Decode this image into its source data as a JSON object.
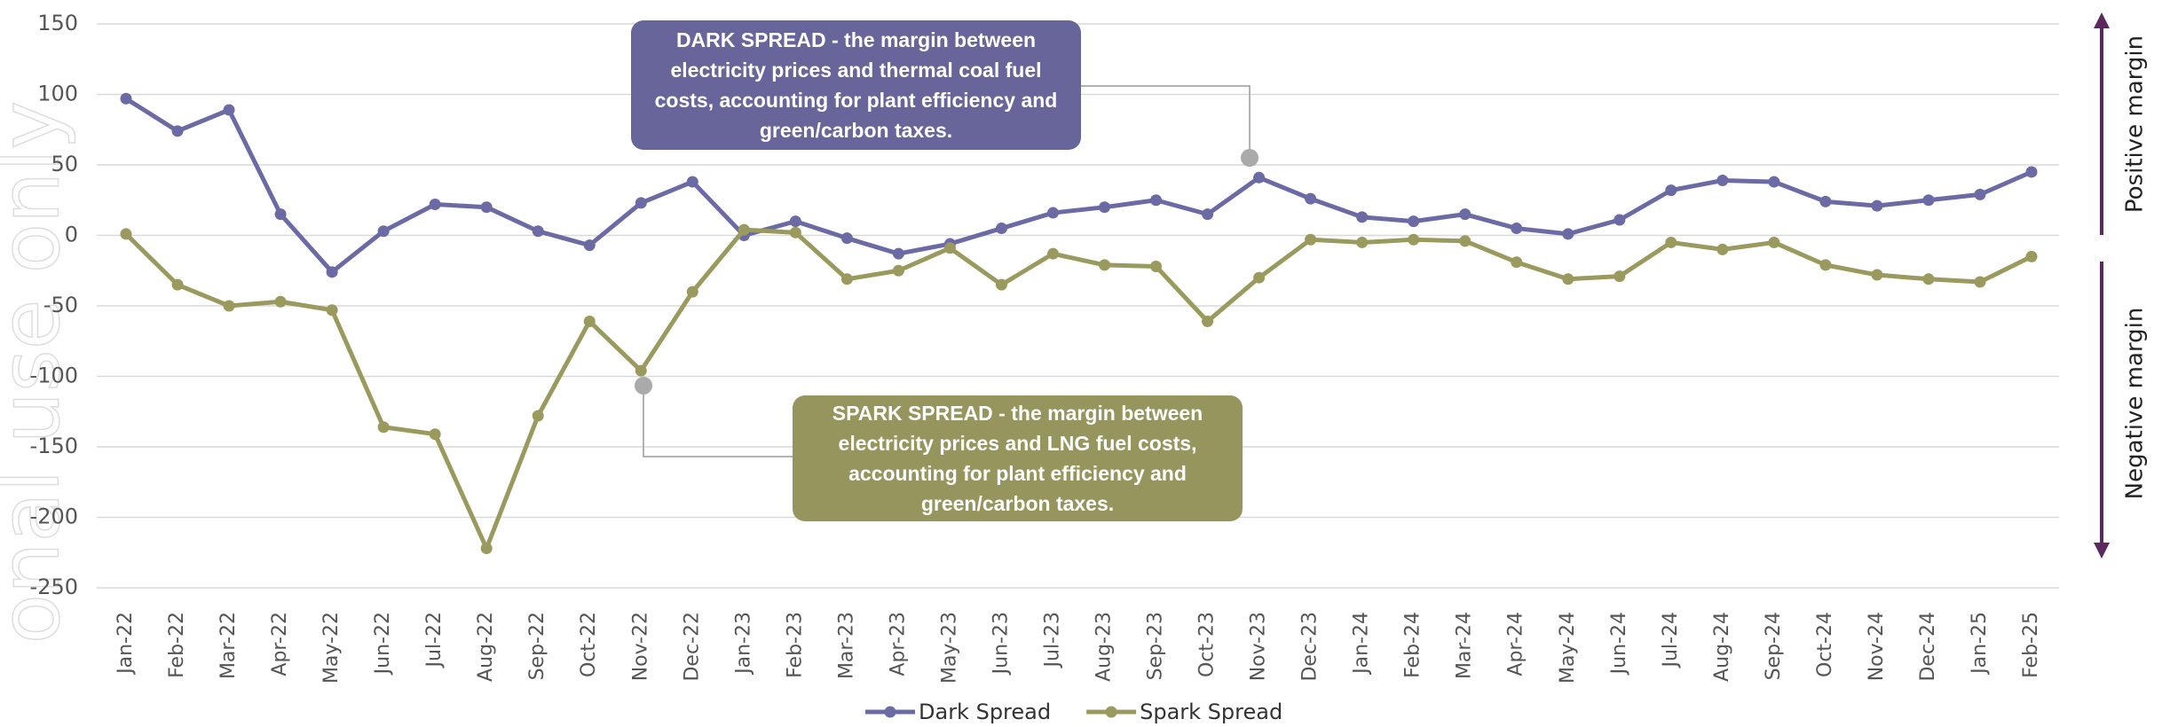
{
  "chart_data": {
    "type": "line",
    "categories": [
      "Jan-22",
      "Feb-22",
      "Mar-22",
      "Apr-22",
      "May-22",
      "Jun-22",
      "Jul-22",
      "Aug-22",
      "Sep-22",
      "Oct-22",
      "Nov-22",
      "Dec-22",
      "Jan-23",
      "Feb-23",
      "Mar-23",
      "Apr-23",
      "May-23",
      "Jun-23",
      "Jul-23",
      "Aug-23",
      "Sep-23",
      "Oct-23",
      "Nov-23",
      "Dec-23",
      "Jan-24",
      "Feb-24",
      "Mar-24",
      "Apr-24",
      "May-24",
      "Jun-24",
      "Jul-24",
      "Aug-24",
      "Sep-24",
      "Oct-24",
      "Nov-24",
      "Dec-24",
      "Jan-25",
      "Feb-25"
    ],
    "series": [
      {
        "name": "Dark Spread",
        "color": "#6b6aa4",
        "values": [
          97,
          74,
          89,
          15,
          -26,
          3,
          22,
          20,
          3,
          -7,
          23,
          38,
          0,
          10,
          -2,
          -13,
          -6,
          5,
          16,
          20,
          25,
          15,
          41,
          26,
          13,
          10,
          15,
          5,
          1,
          11,
          32,
          39,
          38,
          24,
          21,
          25,
          29,
          45
        ]
      },
      {
        "name": "Spark Spread",
        "color": "#9a9a5e",
        "values": [
          1,
          -35,
          -50,
          -47,
          -53,
          -136,
          -141,
          -222,
          -128,
          -61,
          -96,
          -40,
          4,
          2,
          -31,
          -25,
          -9,
          -35,
          -13,
          -21,
          -22,
          -61,
          -30,
          -3,
          -5,
          -3,
          -4,
          -19,
          -31,
          -29,
          -5,
          -10,
          -5,
          -21,
          -28,
          -31,
          -33,
          -15
        ]
      }
    ],
    "ylim": [
      -250,
      150
    ],
    "yticks": [
      -250,
      -200,
      -150,
      -100,
      -50,
      0,
      50,
      100,
      150
    ],
    "grid": true,
    "annotations": [
      {
        "text": "DARK SPREAD - the margin between electricity prices and thermal coal fuel costs, accounting for plant efficiency and green/carbon taxes.",
        "color": "#67659a"
      },
      {
        "text": "SPARK SPREAD - the margin between electricity prices and LNG fuel costs, accounting for plant efficiency and green/carbon taxes.",
        "color": "#96955e"
      }
    ],
    "side_labels": [
      "Positive margin",
      "Negative margin"
    ],
    "watermark": "onal use only"
  }
}
